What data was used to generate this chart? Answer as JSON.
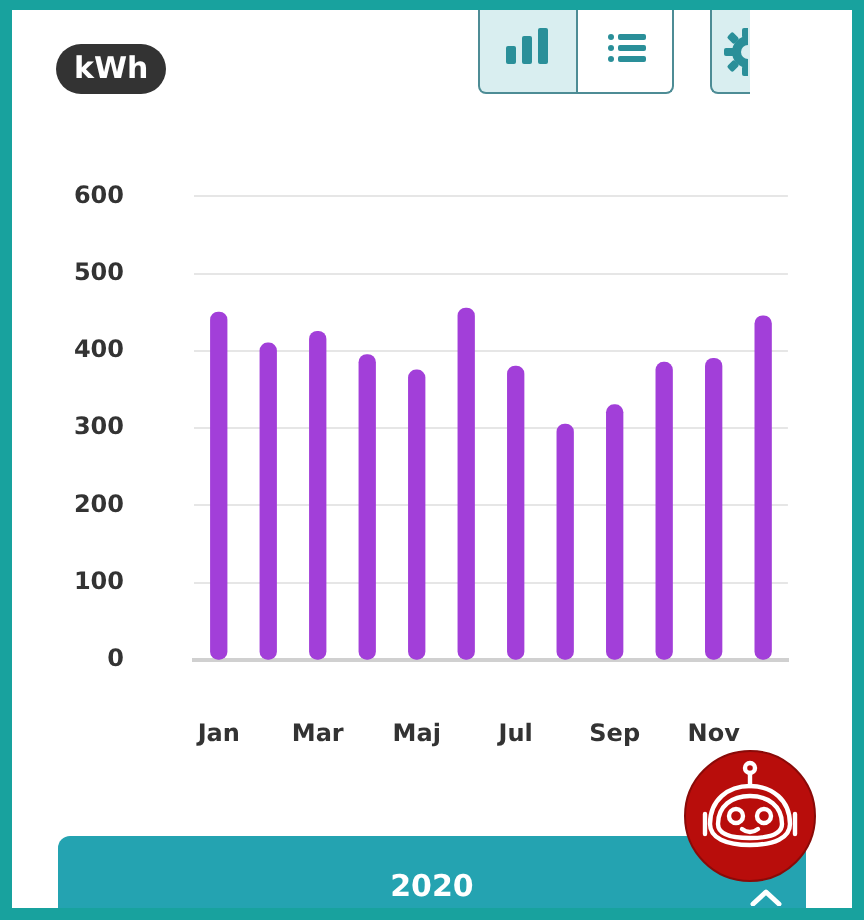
{
  "chart_data": {
    "type": "bar",
    "ylabel": "kWh",
    "annotations": [
      "2020"
    ],
    "categories": [
      "Jan",
      null,
      "Mar",
      null,
      "Maj",
      null,
      "Jul",
      null,
      "Sep",
      null,
      "Nov",
      null
    ],
    "values": [
      450,
      410,
      425,
      395,
      375,
      455,
      380,
      305,
      330,
      385,
      390,
      445
    ],
    "color": "#a23fd9",
    "ylim": [
      0,
      600
    ],
    "yticks": [
      0,
      100,
      200,
      300,
      400,
      500,
      600
    ],
    "grid": "y"
  }
}
